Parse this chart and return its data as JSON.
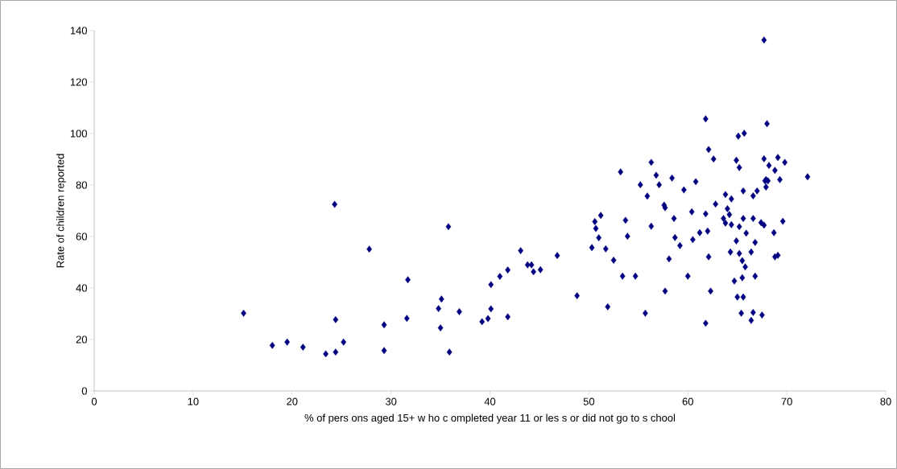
{
  "chart_data": {
    "type": "scatter",
    "xlabel": "% of pers ons  aged 15+ w ho c ompleted year 11 or les s  or did not go to s chool",
    "ylabel": "Rate of children reported",
    "xlim": [
      0,
      80
    ],
    "ylim": [
      0,
      140
    ],
    "xticks": [
      0,
      10,
      20,
      30,
      40,
      50,
      60,
      70,
      80
    ],
    "yticks": [
      0,
      20,
      40,
      60,
      80,
      100,
      120,
      140
    ],
    "grid": false,
    "marker": "diamond",
    "series": [
      {
        "color": "#000080",
        "x": [
          15.1,
          18.0,
          19.5,
          21.1,
          23.4,
          24.4,
          24.4,
          24.3,
          25.2,
          27.8,
          29.3,
          29.3,
          31.6,
          31.7,
          35.8,
          35.1,
          34.8,
          35.0,
          35.9,
          36.9,
          39.2,
          39.8,
          40.1,
          40.1,
          41.0,
          41.8,
          41.8,
          43.1,
          43.8,
          44.2,
          44.4,
          45.1,
          46.8,
          50.3,
          51.0,
          50.7,
          50.6,
          51.2,
          51.7,
          52.5,
          53.2,
          53.7,
          53.9,
          55.2,
          55.9,
          56.3,
          56.8,
          57.1,
          57.6,
          57.7,
          56.3,
          58.4,
          58.6,
          58.7,
          59.2,
          58.1,
          59.6,
          48.8,
          51.9,
          53.4,
          54.7,
          55.7,
          57.7,
          67.7,
          61.8,
          68.0,
          65.1,
          65.7,
          62.1,
          62.6,
          64.9,
          65.2,
          67.7,
          68.2,
          68.8,
          69.1,
          69.8,
          72.1,
          69.3,
          67.8,
          68.1,
          60.8,
          67.9,
          67.9,
          63.8,
          64.4,
          65.6,
          66.6,
          67.0,
          62.8,
          60.4,
          61.8,
          64.0,
          63.6,
          64.2,
          63.8,
          64.4,
          65.6,
          66.6,
          65.2,
          65.9,
          67.4,
          67.7,
          69.6,
          68.7,
          61.2,
          60.5,
          62.0,
          64.9,
          66.8,
          62.1,
          64.3,
          65.2,
          66.4,
          65.5,
          65.8,
          68.8,
          69.1,
          60.0,
          64.7,
          65.5,
          66.8,
          62.3,
          65.0,
          65.6,
          65.4,
          66.6,
          67.5,
          66.4,
          61.8
        ],
        "values": [
          30.2,
          17.7,
          19.0,
          17.0,
          14.4,
          15.1,
          27.7,
          72.5,
          19.0,
          55.1,
          25.7,
          15.7,
          28.2,
          43.2,
          63.8,
          35.7,
          32.0,
          24.5,
          15.1,
          30.8,
          26.9,
          28.1,
          31.9,
          41.3,
          44.5,
          47.0,
          28.8,
          54.5,
          49.0,
          49.0,
          46.3,
          47.1,
          52.6,
          55.7,
          59.5,
          63.1,
          65.8,
          68.2,
          55.2,
          50.8,
          85.1,
          66.3,
          60.1,
          80.1,
          75.7,
          88.8,
          83.8,
          80.1,
          72.2,
          71.2,
          64.0,
          82.7,
          67.0,
          59.6,
          56.5,
          51.3,
          78.1,
          37.0,
          32.7,
          44.6,
          44.6,
          30.2,
          38.8,
          136.3,
          105.7,
          103.8,
          99.0,
          100.1,
          93.8,
          90.1,
          89.6,
          86.8,
          90.2,
          87.6,
          85.7,
          90.7,
          88.8,
          83.2,
          82.1,
          81.6,
          81.6,
          81.3,
          82.1,
          79.2,
          76.3,
          74.6,
          77.7,
          75.8,
          77.7,
          72.6,
          69.6,
          68.8,
          70.8,
          67.0,
          68.5,
          65.2,
          64.6,
          67.0,
          67.0,
          63.8,
          61.3,
          65.4,
          64.4,
          65.9,
          61.5,
          61.5,
          58.8,
          62.1,
          58.3,
          57.7,
          52.1,
          54.0,
          53.4,
          54.0,
          50.6,
          48.2,
          52.1,
          52.7,
          44.6,
          42.7,
          44.0,
          44.6,
          38.8,
          36.5,
          36.5,
          30.2,
          30.5,
          29.5,
          27.4,
          26.3
        ]
      }
    ]
  }
}
